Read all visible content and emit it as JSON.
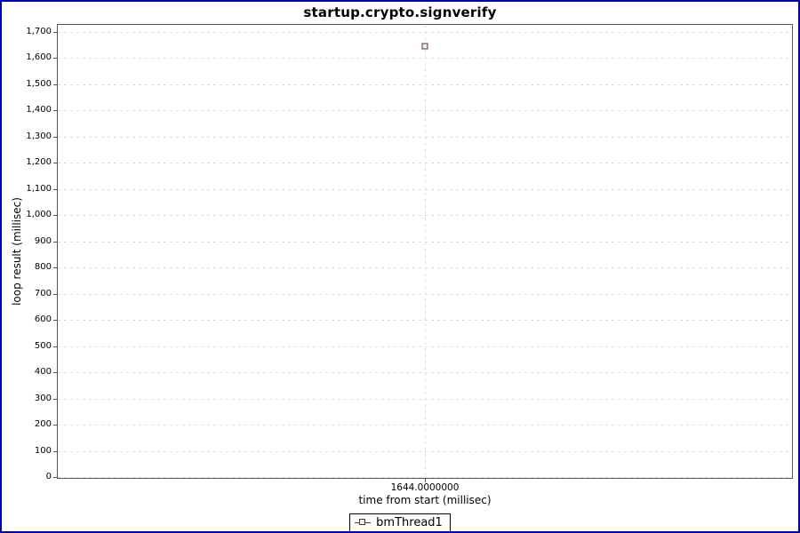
{
  "chart_data": {
    "type": "scatter",
    "title": "startup.crypto.signverify",
    "xlabel": "time from start (millisec)",
    "ylabel": "loop result (millisec)",
    "ylim": [
      0,
      1700
    ],
    "y_tick_step": 100,
    "y_tick_labels": [
      "0",
      "100",
      "200",
      "300",
      "400",
      "500",
      "600",
      "700",
      "800",
      "900",
      "1,000",
      "1,100",
      "1,200",
      "1,300",
      "1,400",
      "1,500",
      "1,600",
      "1,700"
    ],
    "x_ticks": [
      {
        "label": "1644.0000000",
        "frac": 0.5
      }
    ],
    "grid": true,
    "grid_style": "dashed",
    "legend_position": "bottom",
    "series": [
      {
        "name": "bmThread1",
        "marker": "square",
        "points": [
          {
            "x": 1644,
            "y": 1644,
            "x_frac": 0.5
          }
        ]
      }
    ]
  },
  "colors": {
    "frame_border": "#0000a0",
    "plot_border": "#565656",
    "gridline": "#d9d9d9",
    "series_outline": "#5a3333",
    "series_fill": "#e9f6ec",
    "text": "#000000"
  }
}
